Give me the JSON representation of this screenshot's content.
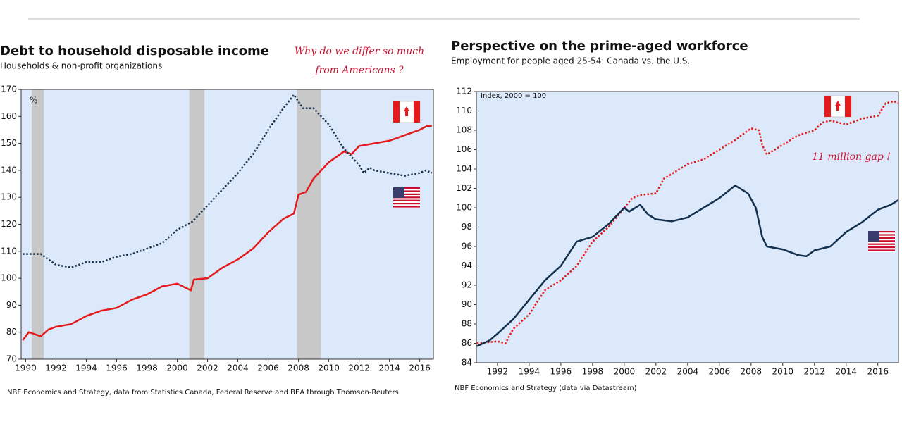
{
  "chart_data": [
    {
      "type": "line",
      "title": "Debt to household disposable income",
      "subtitle": "Households & non-profit organizations",
      "unit_label": "%",
      "annotation": [
        "Why do we differ so much",
        "from Americans ?"
      ],
      "source": "NBF Economics and Strategy, data from Statistics Canada, Federal Reserve and BEA through Thomson-Reuters",
      "xlim": [
        1989.7,
        2016.9
      ],
      "xticks": [
        1990,
        1992,
        1994,
        1996,
        1998,
        2000,
        2002,
        2004,
        2006,
        2008,
        2010,
        2012,
        2014,
        2016
      ],
      "ylim": [
        70,
        170
      ],
      "yticks": [
        70,
        80,
        90,
        100,
        110,
        120,
        130,
        140,
        150,
        160,
        170
      ],
      "shaded_periods": [
        [
          1990.4,
          1991.2
        ],
        [
          2000.8,
          2001.8
        ],
        [
          2007.9,
          2009.5
        ]
      ],
      "shade_color": "#c8c8c8",
      "background": "#dce9fb",
      "series": [
        {
          "name": "Canada",
          "color": "#e41a1c",
          "style": "solid",
          "x": [
            1989.8,
            1990.2,
            1991,
            1991.5,
            1992,
            1993,
            1994,
            1995,
            1996,
            1997,
            1998,
            1999,
            2000,
            2000.9,
            2001.1,
            2002,
            2003,
            2004,
            2005,
            2006,
            2007,
            2007.7,
            2008,
            2008.5,
            2009,
            2010,
            2010.5,
            2011,
            2011.5,
            2012,
            2013,
            2014,
            2015,
            2016,
            2016.5,
            2016.8
          ],
          "values": [
            77,
            80,
            78.5,
            81,
            82,
            83,
            86,
            88,
            89,
            92,
            94,
            97,
            98,
            95.5,
            99.5,
            100,
            104,
            107,
            111,
            117,
            122,
            124,
            131,
            132,
            137,
            143,
            145,
            147,
            146,
            149,
            150,
            151,
            153,
            155,
            156.5,
            156.5
          ]
        },
        {
          "name": "United States",
          "color": "#1b3550",
          "style": "dotted",
          "x": [
            1989.8,
            1991,
            1992,
            1993,
            1994,
            1995,
            1996,
            1997,
            1998,
            1999,
            2000,
            2001,
            2002,
            2003,
            2004,
            2005,
            2006,
            2007,
            2007.7,
            2008.3,
            2009,
            2010,
            2011,
            2012,
            2012.3,
            2012.7,
            2013,
            2014,
            2015,
            2016,
            2016.4,
            2016.8
          ],
          "values": [
            109,
            109,
            105,
            104,
            106,
            106,
            108,
            109,
            111,
            113,
            118,
            121,
            127,
            133,
            139,
            146,
            155,
            163,
            168,
            163,
            163,
            157,
            148,
            142,
            139,
            141,
            140,
            139,
            138,
            139,
            140,
            139
          ]
        }
      ]
    },
    {
      "type": "line",
      "title": "Perspective on the prime-aged workforce",
      "subtitle": "Employment for people aged 25-54: Canada vs. the U.S.",
      "unit_label": "Index, 2000 = 100",
      "annotation": [
        "11 million gap !"
      ],
      "source": "NBF Economics and Strategy (data via Datastream)",
      "xlim": [
        1990.67,
        2017.3
      ],
      "xticks": [
        1992,
        1994,
        1996,
        1998,
        2000,
        2002,
        2004,
        2006,
        2008,
        2010,
        2012,
        2014,
        2016
      ],
      "ylim": [
        84,
        112
      ],
      "yticks": [
        84,
        86,
        88,
        90,
        92,
        94,
        96,
        98,
        100,
        102,
        104,
        106,
        108,
        110,
        112
      ],
      "background": "#dce9fb",
      "series": [
        {
          "name": "Canada",
          "color": "#e41a1c",
          "style": "dotted",
          "x": [
            1990.7,
            1992,
            1992.5,
            1993,
            1994,
            1995,
            1996,
            1997,
            1998,
            1999,
            2000,
            2000.5,
            2001,
            2002,
            2002.5,
            2003,
            2004,
            2005,
            2006,
            2007,
            2008,
            2008.5,
            2008.7,
            2009,
            2010,
            2011,
            2012,
            2012.5,
            2013,
            2014,
            2015,
            2016,
            2016.5,
            2017,
            2017.3
          ],
          "values": [
            86,
            86.2,
            86,
            87.5,
            89,
            91.5,
            92.5,
            94,
            96.5,
            98,
            100,
            101,
            101.3,
            101.5,
            103,
            103.5,
            104.5,
            105,
            106,
            107,
            108.2,
            108,
            106.5,
            105.5,
            106.5,
            107.5,
            108,
            108.8,
            109,
            108.6,
            109.2,
            109.5,
            110.8,
            111,
            110.8
          ]
        },
        {
          "name": "United States",
          "color": "#13304d",
          "style": "solid",
          "x": [
            1990.7,
            1991.5,
            1992,
            1993,
            1994,
            1995,
            1996,
            1997,
            1998,
            1999,
            2000,
            2000.3,
            2001,
            2001.5,
            2002,
            2003,
            2004,
            2005,
            2006,
            2007,
            2007.8,
            2008.3,
            2008.7,
            2009,
            2010,
            2011,
            2011.5,
            2012,
            2013,
            2014,
            2015,
            2016,
            2016.8,
            2017.3
          ],
          "values": [
            85.7,
            86.3,
            87,
            88.5,
            90.5,
            92.5,
            94,
            96.5,
            97,
            98.3,
            100,
            99.6,
            100.3,
            99.3,
            98.8,
            98.6,
            99,
            100,
            101,
            102.3,
            101.5,
            100,
            97,
            96,
            95.7,
            95.1,
            95,
            95.6,
            96,
            97.5,
            98.5,
            99.8,
            100.3,
            100.8
          ]
        }
      ]
    }
  ]
}
